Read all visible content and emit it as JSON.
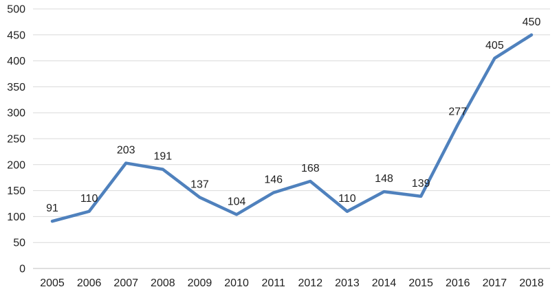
{
  "chart_data": {
    "type": "line",
    "title": "",
    "xlabel": "",
    "ylabel": "",
    "categories": [
      "2005",
      "2006",
      "2007",
      "2008",
      "2009",
      "2010",
      "2011",
      "2012",
      "2013",
      "2014",
      "2015",
      "2016",
      "2017",
      "2018"
    ],
    "values": [
      91,
      110,
      203,
      191,
      137,
      104,
      146,
      168,
      110,
      148,
      139,
      277,
      405,
      450
    ],
    "data_labels": [
      "91",
      "110",
      "203",
      "191",
      "137",
      "104",
      "146",
      "168",
      "110",
      "148",
      "139",
      "277",
      "405",
      "450"
    ],
    "ylim": [
      0,
      500
    ],
    "yticks": [
      0,
      50,
      100,
      150,
      200,
      250,
      300,
      350,
      400,
      450,
      500
    ],
    "ytick_labels": [
      "0",
      "50",
      "100",
      "150",
      "200",
      "250",
      "300",
      "350",
      "400",
      "450",
      "500"
    ],
    "grid": "horizontal-only",
    "legend_position": "none",
    "show_data_labels": true,
    "colors": {
      "line": "#4F81BD",
      "gridline": "#D9D9D9",
      "axis_line": "#BFBFBF",
      "tick_text": "#1F1F1F",
      "data_label_text": "#1F1F1F",
      "background": "#FFFFFF"
    }
  }
}
